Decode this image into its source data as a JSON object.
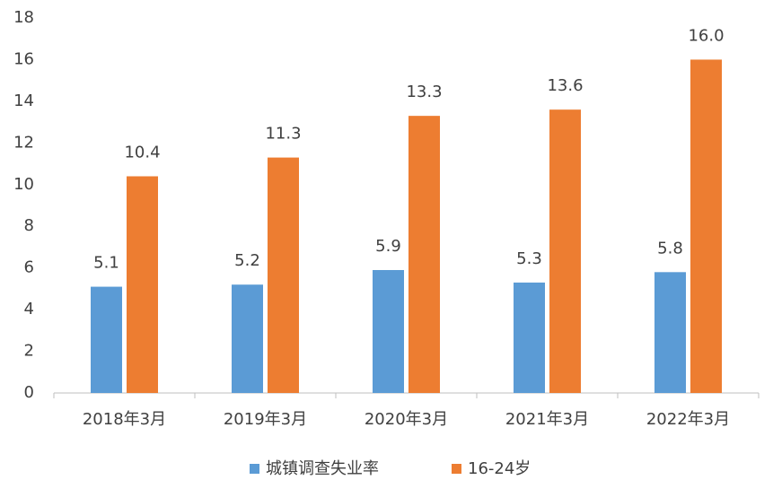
{
  "chart_data": {
    "type": "bar",
    "categories": [
      "2018年3月",
      "2019年3月",
      "2020年3月",
      "2021年3月",
      "2022年3月"
    ],
    "series": [
      {
        "name": "城镇调查失业率",
        "color": "#5b9bd5",
        "values": [
          5.1,
          5.2,
          5.9,
          5.3,
          5.8
        ]
      },
      {
        "name": "16-24岁",
        "color": "#ed7d31",
        "values": [
          10.4,
          11.3,
          13.3,
          13.6,
          16.0
        ],
        "value_labels": [
          "10.4",
          "11.3",
          "13.3",
          "13.6",
          "16.0"
        ]
      }
    ],
    "ylim": [
      0,
      18
    ],
    "yticks": [
      0,
      2,
      4,
      6,
      8,
      10,
      12,
      14,
      16,
      18
    ],
    "grid": false,
    "legend": "bottom"
  }
}
